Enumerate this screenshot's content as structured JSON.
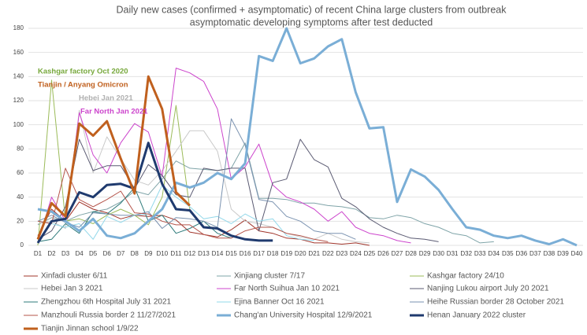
{
  "chart_data": {
    "type": "line",
    "title": [
      "Daily new cases (confirmed + asymptomatic) of recent China large clusters from outbreak",
      "asymptomatic developing symptoms after test deducted"
    ],
    "categories": [
      "D1",
      "D2",
      "D3",
      "D4",
      "D5",
      "D6",
      "D7",
      "D8",
      "D9",
      "D10",
      "D11",
      "D12",
      "D13",
      "D14",
      "D15",
      "D16",
      "D17",
      "D18",
      "D19",
      "D20",
      "D21",
      "D22",
      "D23",
      "D24",
      "D25",
      "D26",
      "D27",
      "D28",
      "D29",
      "D30",
      "D31",
      "D32",
      "D33",
      "D34",
      "D35",
      "D36",
      "D37",
      "D38",
      "D39",
      "D40"
    ],
    "ylim": [
      0,
      180
    ],
    "yticks": [
      0,
      20,
      40,
      60,
      80,
      100,
      120,
      140,
      160,
      180
    ],
    "grid": true,
    "annotations": [
      {
        "text": "Kashgar factory Oct 2020",
        "color": "#77a83c"
      },
      {
        "text": "Tianjin / Anyang Omicron",
        "color": "#c0601e"
      },
      {
        "text": "Hebei Jan 2021",
        "color": "#b0b0b0"
      },
      {
        "text": "Far North Jan 2021",
        "color": "#cc44cc"
      }
    ],
    "series": [
      {
        "name": "Xinfadi cluster 6/11",
        "color": "#a0342a",
        "width": 1,
        "values": [
          8,
          30,
          20,
          36,
          30,
          27,
          22,
          25,
          24,
          25,
          21,
          11,
          9,
          7,
          13,
          21,
          12,
          10,
          6,
          5,
          2,
          2,
          1,
          2,
          0,
          null,
          null,
          null,
          null,
          null,
          null,
          null,
          null,
          null,
          null,
          null,
          null,
          null,
          null,
          null
        ]
      },
      {
        "name": "Xinjiang cluster 7/17",
        "color": "#7fa4a8",
        "width": 1,
        "values": [
          17,
          23,
          20,
          25,
          28,
          30,
          36,
          45,
          42,
          55,
          70,
          64,
          63,
          62,
          64,
          85,
          39,
          39,
          38,
          35,
          35,
          33,
          32,
          30,
          23,
          22,
          25,
          23,
          18,
          15,
          10,
          8,
          2,
          3,
          null,
          null,
          null,
          null,
          null,
          null
        ]
      },
      {
        "name": "Kashgar factory 24/10",
        "color": "#9bbb59",
        "width": 1,
        "values": [
          0,
          137,
          20,
          22,
          18,
          25,
          30,
          25,
          17,
          40,
          116,
          30,
          null,
          null,
          null,
          null,
          null,
          null,
          null,
          null,
          null,
          null,
          null,
          null,
          null,
          null,
          null,
          null,
          null,
          null,
          null,
          null,
          null,
          null,
          null,
          null,
          null,
          null,
          null,
          null
        ]
      },
      {
        "name": "Hebei Jan 3 2021",
        "color": "#c9c9c9",
        "width": 1,
        "values": [
          18,
          20,
          14,
          112,
          60,
          90,
          72,
          54,
          50,
          62,
          78,
          95,
          95,
          78,
          30,
          20,
          18,
          15,
          10,
          7,
          5,
          10,
          5,
          3,
          2,
          null,
          null,
          null,
          null,
          null,
          null,
          null,
          null,
          null,
          null,
          null,
          null,
          null,
          null,
          null
        ]
      },
      {
        "name": "Far North Suihua Jan 10 2021",
        "color": "#cc44cc",
        "width": 1,
        "values": [
          2,
          40,
          20,
          110,
          75,
          60,
          85,
          101,
          94,
          57,
          147,
          143,
          136,
          113,
          55,
          65,
          84,
          50,
          40,
          36,
          30,
          20,
          28,
          15,
          10,
          8,
          4,
          2,
          null,
          null,
          null,
          null,
          null,
          null,
          null,
          null,
          null,
          null,
          null,
          null
        ]
      },
      {
        "name": "Nanjing Lukou airport July 20 2021",
        "color": "#5a5a72",
        "width": 1,
        "values": [
          5,
          12,
          32,
          88,
          62,
          66,
          66,
          47,
          67,
          58,
          42,
          40,
          64,
          62,
          64,
          64,
          12,
          52,
          55,
          88,
          71,
          65,
          39,
          32,
          22,
          15,
          10,
          6,
          5,
          3,
          null,
          null,
          null,
          null,
          null,
          null,
          null,
          null,
          null,
          null
        ]
      },
      {
        "name": "Zhengzhou 6th Hospital July 31 2021",
        "color": "#2e7b7b",
        "width": 1,
        "values": [
          3,
          5,
          18,
          10,
          28,
          26,
          35,
          48,
          20,
          25,
          10,
          14,
          20,
          10,
          6,
          null,
          null,
          null,
          null,
          null,
          null,
          null,
          null,
          null,
          null,
          null,
          null,
          null,
          null,
          null,
          null,
          null,
          null,
          null,
          null,
          null,
          null,
          null,
          null,
          null
        ]
      },
      {
        "name": "Ejina Banner Oct 16 2021",
        "color": "#92d8ea",
        "width": 1,
        "values": [
          20,
          18,
          15,
          18,
          5,
          24,
          19,
          25,
          26,
          50,
          40,
          32,
          22,
          24,
          18,
          26,
          20,
          22,
          8,
          5,
          4,
          null,
          null,
          null,
          null,
          null,
          null,
          null,
          null,
          null,
          null,
          null,
          null,
          null,
          null,
          null,
          null,
          null,
          null,
          null
        ]
      },
      {
        "name": "Heihe Russian border 28 October 2021",
        "color": "#7a92b0",
        "width": 1,
        "values": [
          20,
          25,
          19,
          15,
          27,
          26,
          25,
          25,
          28,
          14,
          23,
          22,
          20,
          15,
          105,
          83,
          38,
          36,
          24,
          20,
          12,
          10,
          10,
          5,
          null,
          null,
          null,
          null,
          null,
          null,
          null,
          null,
          null,
          null,
          null,
          null,
          null,
          null,
          null,
          null
        ]
      },
      {
        "name": "Manzhouli Russia border 2 11/27/2021",
        "color": "#b5544a",
        "width": 1,
        "values": [
          20,
          18,
          64,
          38,
          32,
          38,
          45,
          27,
          26,
          20,
          17,
          17,
          9,
          6,
          6,
          12,
          15,
          15,
          10,
          8,
          5,
          3,
          null,
          null,
          null,
          null,
          null,
          null,
          null,
          null,
          null,
          null,
          null,
          null,
          null,
          null,
          null,
          null,
          null,
          null
        ]
      },
      {
        "name": "Chang'an University Hospital 12/9/2021",
        "color": "#7aaed6",
        "width": 3,
        "values": [
          30,
          28,
          20,
          12,
          22,
          8,
          6,
          10,
          20,
          30,
          52,
          48,
          52,
          60,
          55,
          68,
          157,
          153,
          180,
          151,
          155,
          165,
          171,
          127,
          97,
          98,
          36,
          63,
          57,
          46,
          30,
          15,
          13,
          8,
          6,
          8,
          4,
          1,
          5,
          0
        ]
      },
      {
        "name": "Henan January 2022 cluster",
        "color": "#1f3a6e",
        "width": 3,
        "values": [
          2,
          20,
          22,
          44,
          40,
          50,
          51,
          47,
          85,
          51,
          30,
          29,
          15,
          14,
          8,
          5,
          4,
          4,
          null,
          null,
          null,
          null,
          null,
          null,
          null,
          null,
          null,
          null,
          null,
          null,
          null,
          null,
          null,
          null,
          null,
          null,
          null,
          null,
          null,
          null
        ]
      },
      {
        "name": "Tianjin Jinnan school 1/9/22",
        "color": "#c0601e",
        "width": 3,
        "values": [
          5,
          35,
          24,
          101,
          91,
          103,
          72,
          43,
          140,
          113,
          44,
          33,
          null,
          null,
          null,
          null,
          null,
          null,
          null,
          null,
          null,
          null,
          null,
          null,
          null,
          null,
          null,
          null,
          null,
          null,
          null,
          null,
          null,
          null,
          null,
          null,
          null,
          null,
          null,
          null
        ]
      }
    ]
  }
}
